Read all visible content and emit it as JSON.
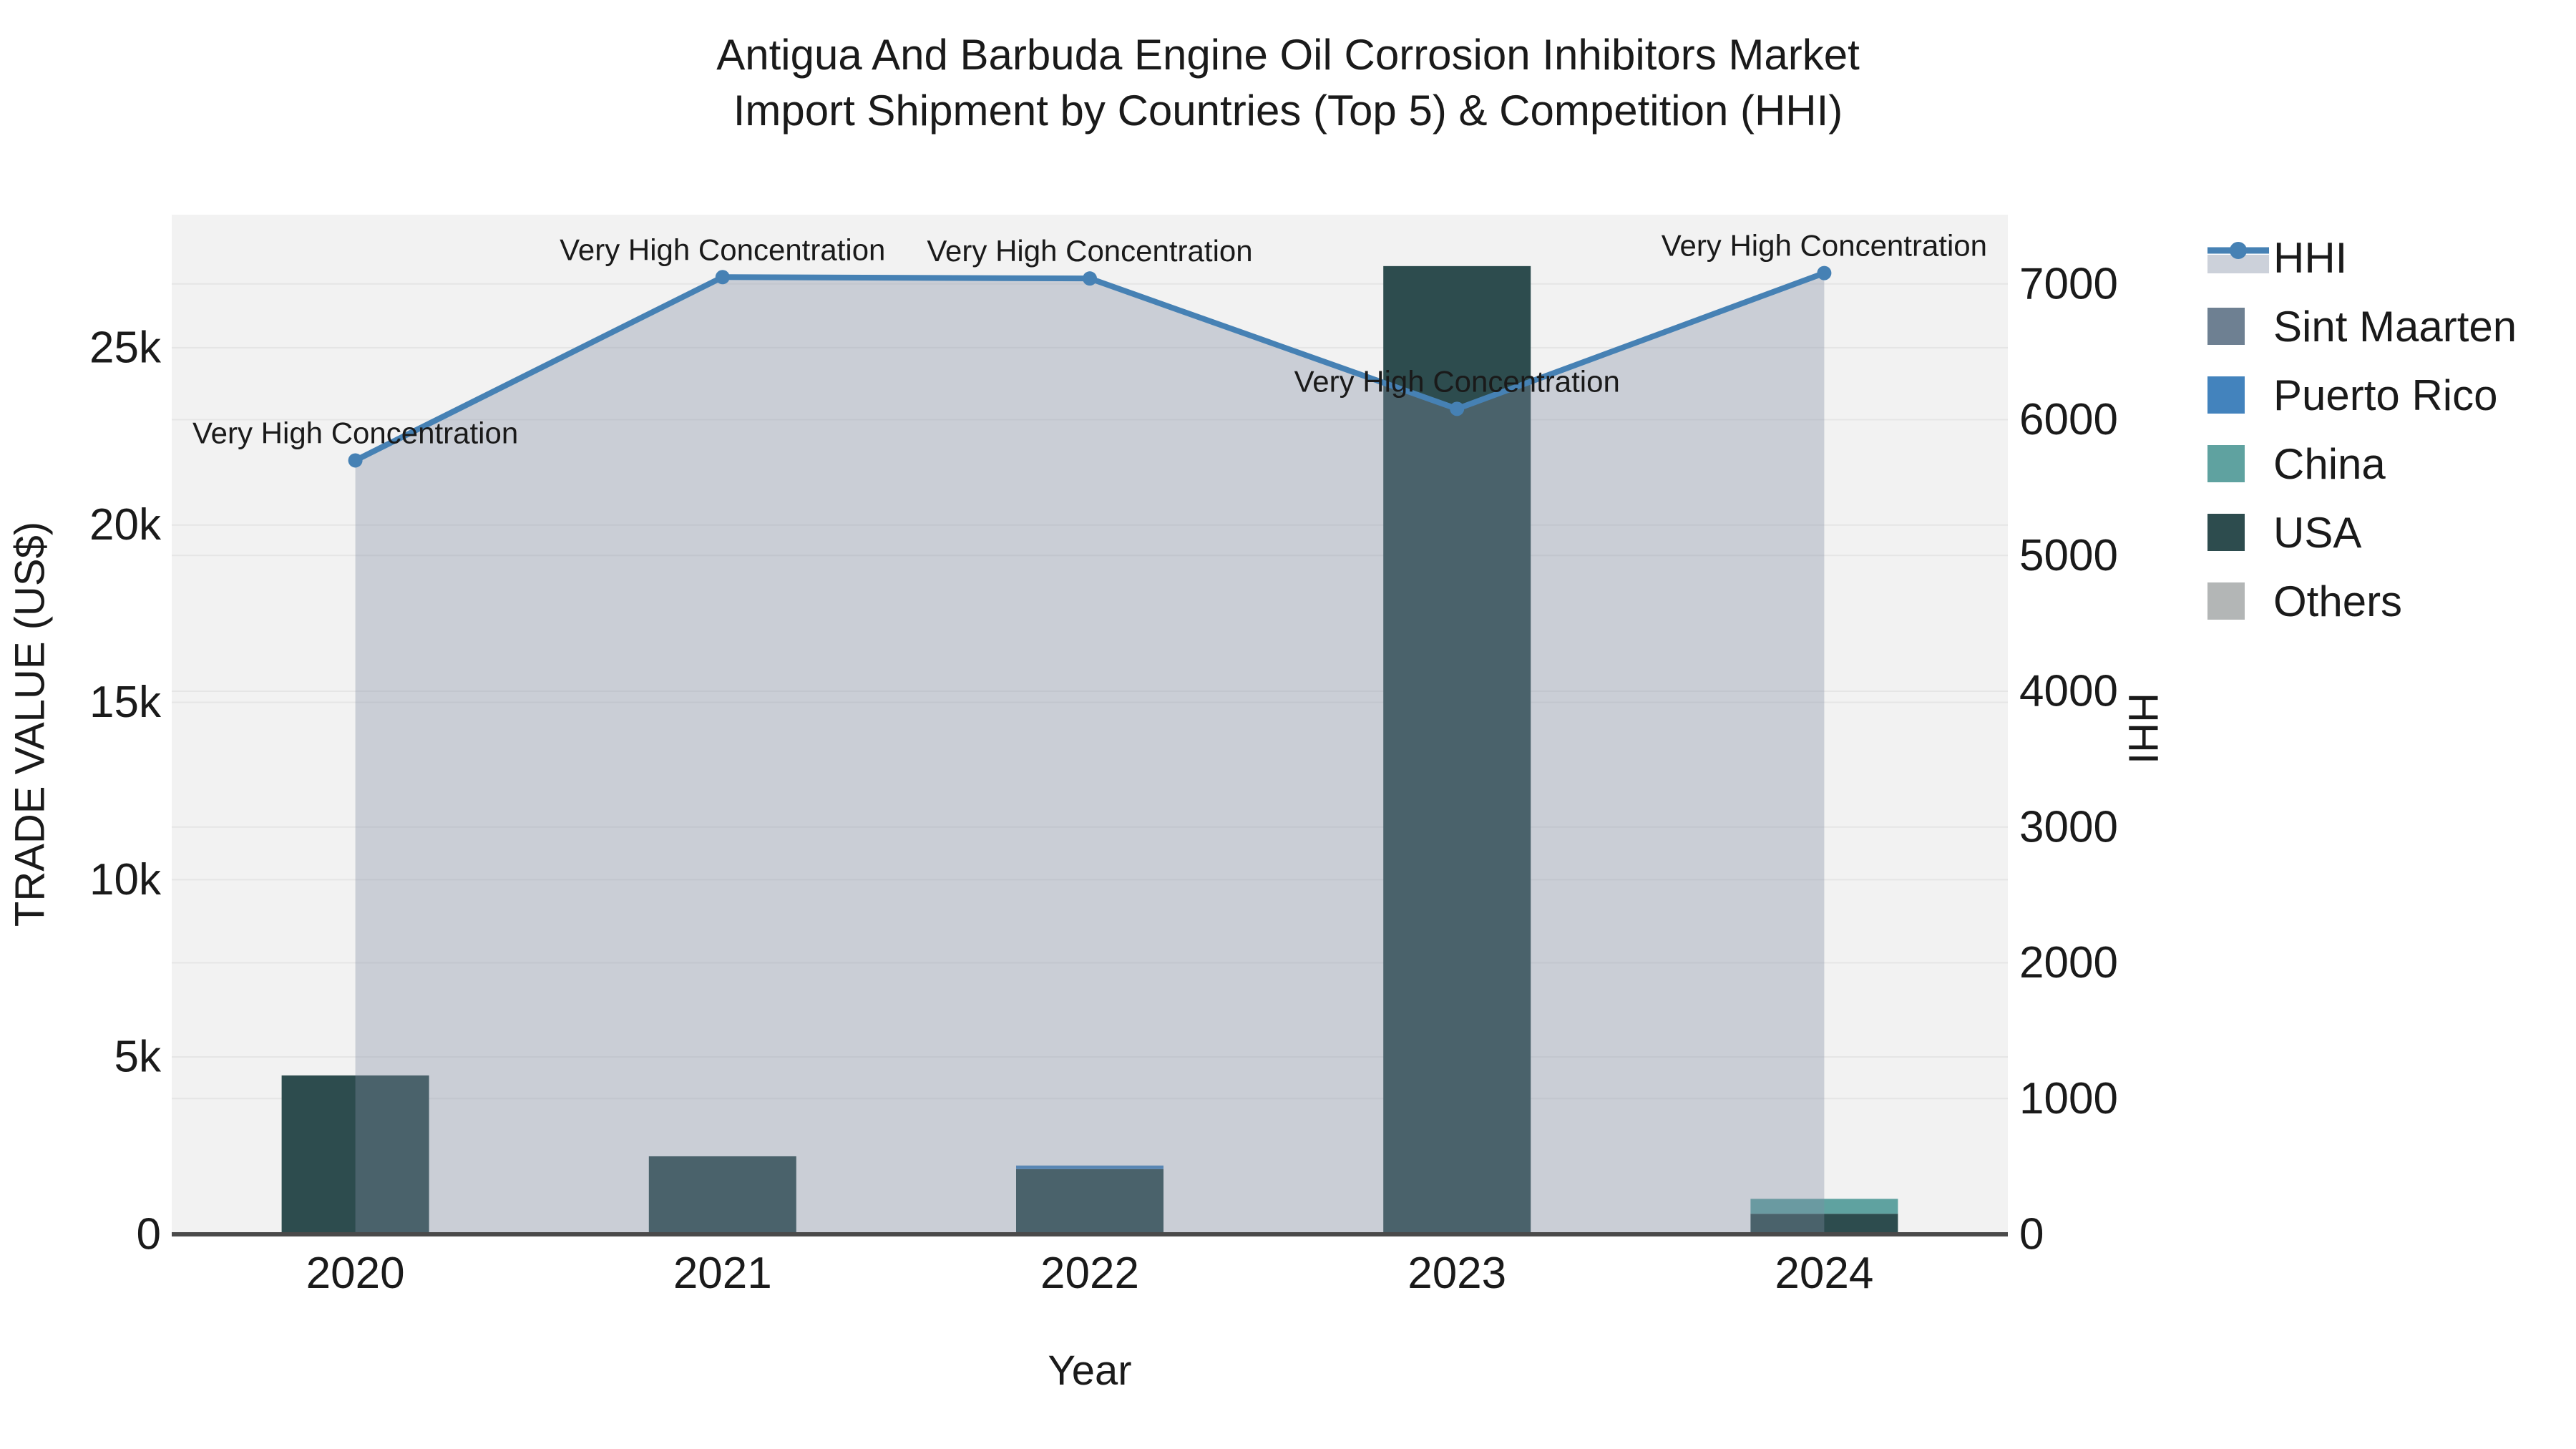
{
  "title": {
    "line1": "Antigua And Barbuda Engine Oil Corrosion Inhibitors Market",
    "line2": "Import Shipment by Countries (Top 5) & Competition (HHI)"
  },
  "axes": {
    "x": {
      "title": "Year",
      "categories": [
        "2020",
        "2021",
        "2022",
        "2023",
        "2024"
      ]
    },
    "left": {
      "title": "TRADE VALUE (US$)",
      "tick_labels": [
        "0",
        "5k",
        "10k",
        "15k",
        "20k",
        "25k"
      ],
      "tick_values": [
        0,
        5000,
        10000,
        15000,
        20000,
        25000
      ]
    },
    "right": {
      "title": "HHI",
      "tick_labels": [
        "0",
        "1000",
        "2000",
        "3000",
        "4000",
        "5000",
        "6000",
        "7000"
      ],
      "tick_values": [
        0,
        1000,
        2000,
        3000,
        4000,
        5000,
        6000,
        7000
      ]
    }
  },
  "legend": {
    "items": [
      {
        "label": "HHI",
        "type": "line",
        "color": "#4681b4",
        "fill": "#ccd1da"
      },
      {
        "label": "Sint Maarten",
        "type": "square",
        "color": "#6e8092"
      },
      {
        "label": "Puerto Rico",
        "type": "square",
        "color": "#4383bd"
      },
      {
        "label": "China",
        "type": "square",
        "color": "#5fa2a0"
      },
      {
        "label": "USA",
        "type": "square",
        "color": "#2d4c4e"
      },
      {
        "label": "Others",
        "type": "square",
        "color": "#b3b6b6"
      }
    ]
  },
  "chart_data": {
    "type": "combo (stacked bar + line with area fill)",
    "categories": [
      "2020",
      "2021",
      "2022",
      "2023",
      "2024"
    ],
    "bar_series": [
      {
        "name": "Sint Maarten",
        "color": "#6e8092",
        "values": [
          0,
          0,
          0,
          0,
          0
        ]
      },
      {
        "name": "Puerto Rico",
        "color": "#4383bd",
        "values": [
          0,
          0,
          100,
          0,
          0
        ]
      },
      {
        "name": "China",
        "color": "#5fa2a0",
        "values": [
          0,
          0,
          0,
          0,
          420
        ]
      },
      {
        "name": "USA",
        "color": "#2d4c4e",
        "values": [
          4480,
          2200,
          1840,
          27300,
          580
        ]
      },
      {
        "name": "Others",
        "color": "#b3b6b6",
        "values": [
          0,
          0,
          0,
          0,
          0
        ]
      }
    ],
    "stack_order": [
      "USA",
      "Puerto Rico",
      "China",
      "Sint Maarten",
      "Others"
    ],
    "line_series": {
      "name": "HHI",
      "color": "#4681b4",
      "area_fill": "rgba(128,140,162,0.35)",
      "values": [
        5700,
        7050,
        7040,
        6080,
        7080
      ]
    },
    "annotations": [
      {
        "category": "2020",
        "text": "Very High Concentration"
      },
      {
        "category": "2021",
        "text": "Very High Concentration"
      },
      {
        "category": "2022",
        "text": "Very High Concentration"
      },
      {
        "category": "2023",
        "text": "Very High Concentration"
      },
      {
        "category": "2024",
        "text": "Very High Concentration"
      }
    ],
    "title": "Antigua And Barbuda Engine Oil Corrosion Inhibitors Market Import Shipment by Countries (Top 5) & Competition (HHI)",
    "xlabel": "Year",
    "ylabel_left": "TRADE VALUE (US$)",
    "ylabel_right": "HHI",
    "left_axis_range": [
      0,
      28750
    ],
    "right_axis_range": [
      0,
      7510
    ],
    "grid": true,
    "legend_position": "right"
  },
  "colors": {
    "figure_bg": "#ffffff",
    "plot_bg": "#f2f2f2",
    "gridline": "#e5e5e5",
    "axis_line": "#4a4a4a",
    "text": "#1a1a1a"
  }
}
